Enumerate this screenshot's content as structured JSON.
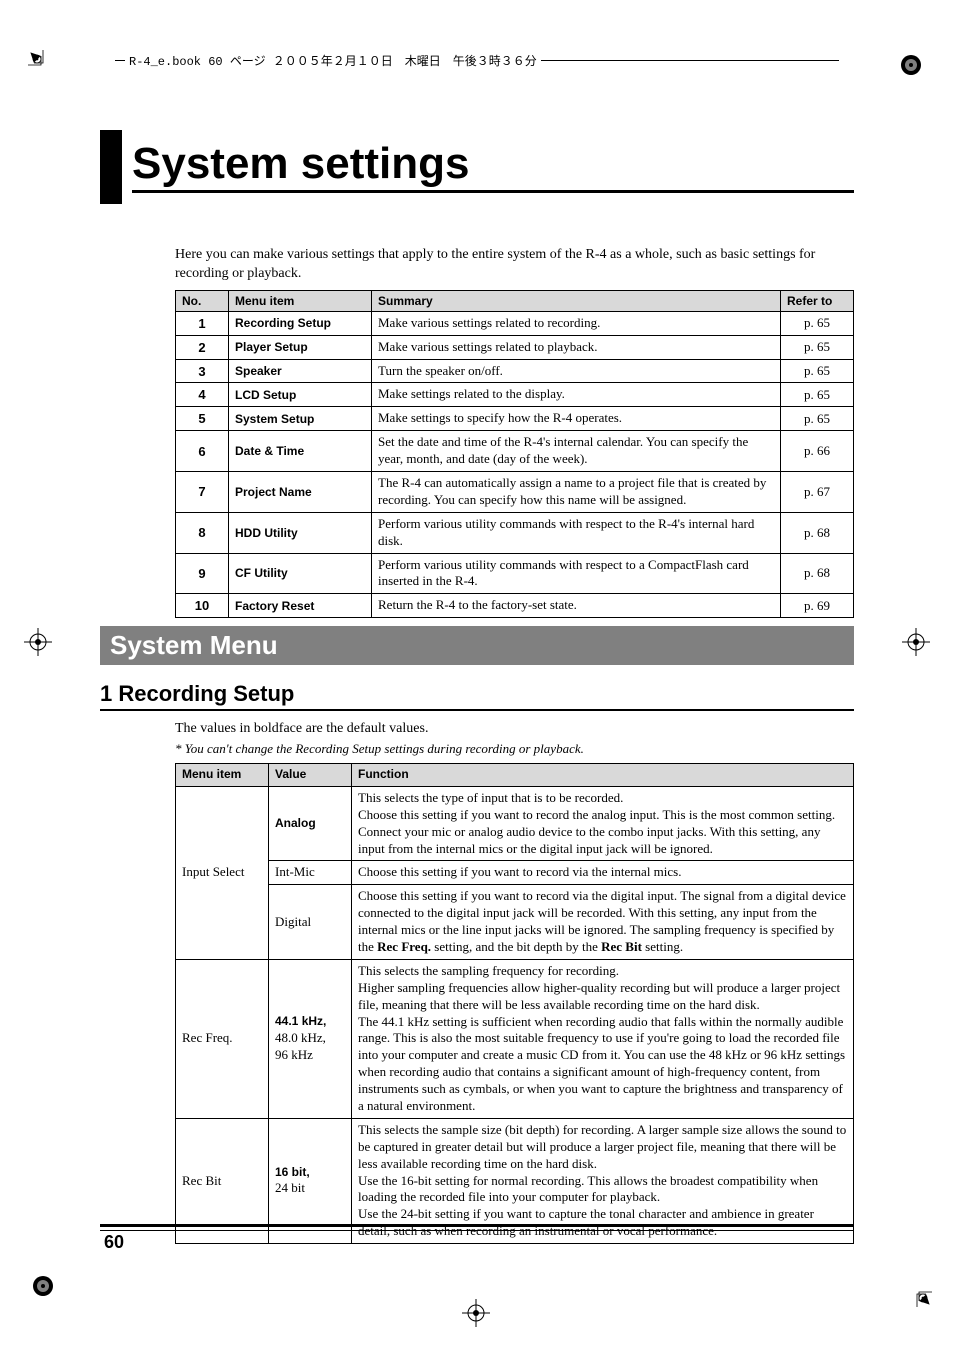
{
  "header_line_text": "R-4_e.book  60 ページ  ２００５年２月１０日　木曜日　午後３時３６分",
  "title": "System settings",
  "intro": "Here you can make various settings that apply to the entire system of the R-4 as a whole, such as basic settings for recording or playback.",
  "settings_table": {
    "headers": [
      "No.",
      "Menu item",
      "Summary",
      "Refer to"
    ],
    "rows": [
      {
        "no": "1",
        "menu": "Recording Setup",
        "summary": "Make various settings related to recording.",
        "ref": "p. 65"
      },
      {
        "no": "2",
        "menu": "Player Setup",
        "summary": "Make various settings related to playback.",
        "ref": "p. 65"
      },
      {
        "no": "3",
        "menu": "Speaker",
        "summary": "Turn the speaker on/off.",
        "ref": "p. 65"
      },
      {
        "no": "4",
        "menu": "LCD Setup",
        "summary": "Make settings related to the display.",
        "ref": "p. 65"
      },
      {
        "no": "5",
        "menu": "System Setup",
        "summary": "Make settings to specify how the R-4 operates.",
        "ref": "p. 65"
      },
      {
        "no": "6",
        "menu": "Date & Time",
        "summary": "Set the date and time of the R-4's internal calendar. You can specify the year, month, and date (day of the week).",
        "ref": "p. 66"
      },
      {
        "no": "7",
        "menu": "Project Name",
        "summary": "The R-4 can automatically assign a name to a project file that is created by recording. You can specify how this name will be assigned.",
        "ref": "p. 67"
      },
      {
        "no": "8",
        "menu": "HDD Utility",
        "summary": "Perform various utility commands with respect to the R-4's internal hard disk.",
        "ref": "p. 68"
      },
      {
        "no": "9",
        "menu": "CF Utility",
        "summary": "Perform various utility commands with respect to a CompactFlash card inserted in the R-4.",
        "ref": "p. 68"
      },
      {
        "no": "10",
        "menu": "Factory Reset",
        "summary": "Return the R-4 to the factory-set state.",
        "ref": "p. 69"
      }
    ]
  },
  "section_bar": "System Menu",
  "subheading": "1 Recording Setup",
  "default_note": "The values in boldface are the default values.",
  "footnote": "*   You can't change the Recording Setup settings during recording or playback.",
  "detail_table": {
    "headers": [
      "Menu item",
      "Value",
      "Function"
    ],
    "groups": [
      {
        "menu": "Input Select",
        "rows": [
          {
            "value_bold": "Analog",
            "value_light": "",
            "func": "This selects the type of input that is to be recorded.\nChoose this setting if you want to record the analog input. This is the most common setting. Connect your mic or analog audio device to the combo input jacks. With this setting, any input from the internal mics or the digital input jack will be ignored."
          },
          {
            "value_bold": "",
            "value_light": "Int-Mic",
            "func": "Choose this setting if you want to record via the internal mics."
          },
          {
            "value_bold": "",
            "value_light": "Digital",
            "func": "Choose this setting if you want to record via the digital input. The signal from a digital device connected to the digital input jack will be recorded. With this setting, any input from the internal mics or the line input jacks will be ignored. The sampling frequency is specified by the <b>Rec Freq.</b> setting, and the bit depth by the <b>Rec Bit</b> setting."
          }
        ]
      },
      {
        "menu": "Rec Freq.",
        "rows": [
          {
            "value_bold": "44.1 kHz,",
            "value_light": "48.0 kHz, 96 kHz",
            "func": "This selects the sampling frequency for recording.\nHigher sampling frequencies allow higher-quality recording but will produce a larger project file, meaning that there will be less available recording time on the hard disk.\nThe 44.1 kHz setting is sufficient when recording audio that falls within the normally audible range. This is also the most suitable frequency to use if you're going to load the recorded file into your computer and create a music CD from it. You can use the 48 kHz or 96 kHz settings when recording audio that contains a significant amount of high-frequency content, from instruments such as cymbals, or when you want to capture the brightness and transparency of a natural environment."
          }
        ]
      },
      {
        "menu": "Rec Bit",
        "rows": [
          {
            "value_bold": "16 bit,",
            "value_light": "24 bit",
            "func": "This selects the sample size (bit depth) for recording. A larger sample size allows the sound to be captured in greater detail but will produce a larger project file, meaning that there will be less available recording time on the hard disk.\nUse the 16-bit setting for normal recording. This allows the broadest compatibility when loading the recorded file into your computer for playback.\nUse the 24-bit setting if you want to capture the tonal character and ambience in greater detail, such as when recording an instrumental or vocal performance."
          }
        ]
      }
    ]
  },
  "page_number": "60"
}
